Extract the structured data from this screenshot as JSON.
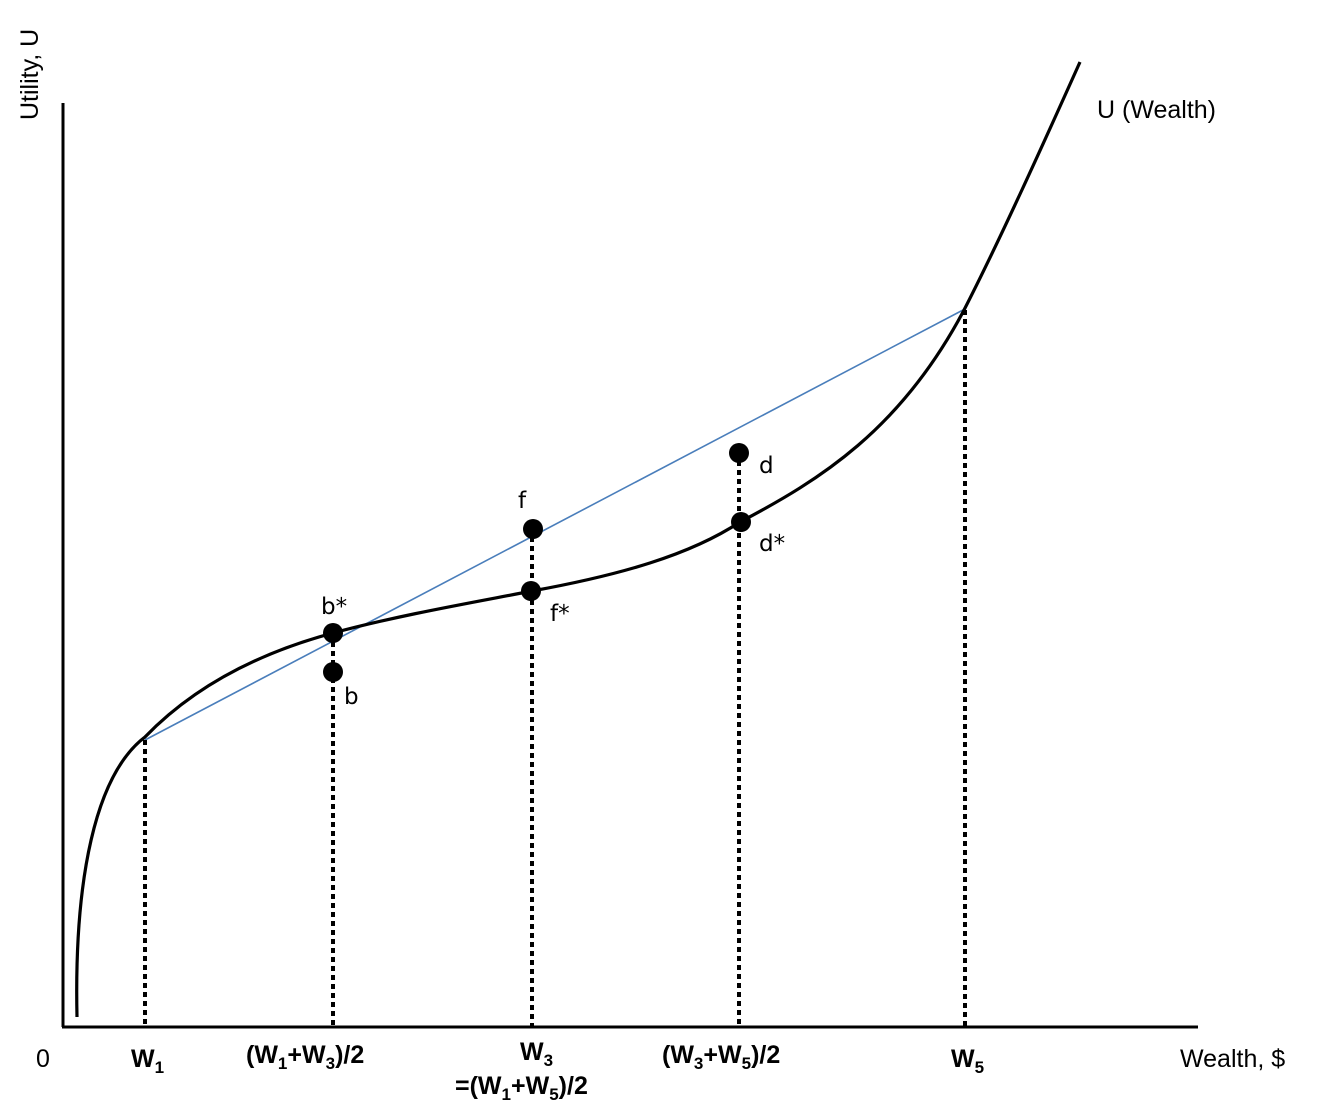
{
  "diagram": {
    "y_axis_title": "Utility, U",
    "x_axis_title": "Wealth, $",
    "origin_label": "0",
    "curve_label": "U (Wealth)",
    "colors": {
      "curve": "#000000",
      "chord": "#4a7ebb",
      "dotted": "#000000"
    },
    "x_ticks": [
      {
        "id": "w1",
        "main": "W",
        "sub": "1"
      },
      {
        "id": "w1w3",
        "pre": "(W",
        "sub1": "1",
        "mid": "+W",
        "sub2": "3",
        "post": ")/2"
      },
      {
        "id": "w3",
        "main": "W",
        "sub": "3",
        "line2_pre": "=(W",
        "line2_sub1": "1",
        "line2_mid": "+W",
        "line2_sub2": "5",
        "line2_post": ")/2"
      },
      {
        "id": "w3w5",
        "pre": "(W",
        "sub1": "3",
        "mid": "+W",
        "sub2": "5",
        "post": ")/2"
      },
      {
        "id": "w5",
        "main": "W",
        "sub": "5"
      }
    ],
    "points": {
      "b_star": "b*",
      "b": "b",
      "f": "f",
      "f_star": "f*",
      "d": "d",
      "d_star": "d*"
    }
  }
}
